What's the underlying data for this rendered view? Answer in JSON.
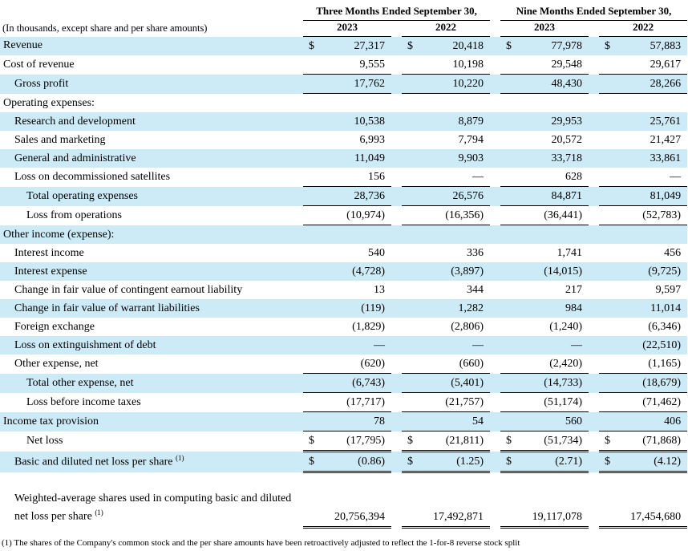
{
  "header": {
    "left_note": "(In thousands, except share and per share amounts)",
    "col_groups": [
      "Three Months Ended September 30,",
      "Nine Months Ended September 30,"
    ],
    "years": [
      "2023",
      "2022",
      "2023",
      "2022"
    ]
  },
  "colors": {
    "row_shade": "#cdeaf7",
    "border": "#000000"
  },
  "table": {
    "rows": [
      {
        "label": "Revenue",
        "indent": 0,
        "shade": true,
        "dollar": true,
        "values": [
          "27,317",
          "20,418",
          "77,978",
          "57,883"
        ],
        "border": "none"
      },
      {
        "label": "Cost of revenue",
        "indent": 0,
        "shade": false,
        "values": [
          "9,555",
          "10,198",
          "29,548",
          "29,617"
        ],
        "border": "single"
      },
      {
        "label": "Gross profit",
        "indent": 1,
        "shade": true,
        "values": [
          "17,762",
          "10,220",
          "48,430",
          "28,266"
        ],
        "border": "single"
      },
      {
        "label": "Operating expenses:",
        "indent": 0,
        "shade": false,
        "values": null
      },
      {
        "label": "Research and development",
        "indent": 1,
        "shade": true,
        "values": [
          "10,538",
          "8,879",
          "29,953",
          "25,761"
        ],
        "border": "none"
      },
      {
        "label": "Sales and marketing",
        "indent": 1,
        "shade": false,
        "values": [
          "6,993",
          "7,794",
          "20,572",
          "21,427"
        ],
        "border": "none"
      },
      {
        "label": "General and administrative",
        "indent": 1,
        "shade": true,
        "values": [
          "11,049",
          "9,903",
          "33,718",
          "33,861"
        ],
        "border": "none"
      },
      {
        "label": "Loss on decommissioned satellites",
        "indent": 1,
        "shade": false,
        "values": [
          "156",
          "—",
          "628",
          "—"
        ],
        "border": "single"
      },
      {
        "label": "Total operating expenses",
        "indent": 2,
        "shade": true,
        "values": [
          "28,736",
          "26,576",
          "84,871",
          "81,049"
        ],
        "border": "single"
      },
      {
        "label": "Loss from operations",
        "indent": 2,
        "shade": false,
        "values": [
          "(10,974)",
          "(16,356)",
          "(36,441)",
          "(52,783)"
        ],
        "border": "single"
      },
      {
        "label": "Other income (expense):",
        "indent": 0,
        "shade": true,
        "values": null
      },
      {
        "label": "Interest income",
        "indent": 1,
        "shade": false,
        "values": [
          "540",
          "336",
          "1,741",
          "456"
        ],
        "border": "none"
      },
      {
        "label": "Interest expense",
        "indent": 1,
        "shade": true,
        "values": [
          "(4,728)",
          "(3,897)",
          "(14,015)",
          "(9,725)"
        ],
        "border": "none"
      },
      {
        "label": "Change in fair value of contingent earnout liability",
        "indent": 1,
        "shade": false,
        "values": [
          "13",
          "344",
          "217",
          "9,597"
        ],
        "border": "none"
      },
      {
        "label": "Change in fair value of warrant liabilities",
        "indent": 1,
        "shade": true,
        "values": [
          "(119)",
          "1,282",
          "984",
          "11,014"
        ],
        "border": "none"
      },
      {
        "label": "Foreign exchange",
        "indent": 1,
        "shade": false,
        "values": [
          "(1,829)",
          "(2,806)",
          "(1,240)",
          "(6,346)"
        ],
        "border": "none"
      },
      {
        "label": "Loss on extinguishment of debt",
        "indent": 1,
        "shade": true,
        "values": [
          "—",
          "—",
          "—",
          "(22,510)"
        ],
        "border": "none"
      },
      {
        "label": "Other expense, net",
        "indent": 1,
        "shade": false,
        "values": [
          "(620)",
          "(660)",
          "(2,420)",
          "(1,165)"
        ],
        "border": "single"
      },
      {
        "label": "Total other expense, net",
        "indent": 2,
        "shade": true,
        "values": [
          "(6,743)",
          "(5,401)",
          "(14,733)",
          "(18,679)"
        ],
        "border": "single"
      },
      {
        "label": "Loss before income taxes",
        "indent": 2,
        "shade": false,
        "values": [
          "(17,717)",
          "(21,757)",
          "(51,174)",
          "(71,462)"
        ],
        "border": "single"
      },
      {
        "label": "Income tax provision",
        "indent": 0,
        "shade": true,
        "values": [
          "78",
          "54",
          "560",
          "406"
        ],
        "border": "single"
      },
      {
        "label": "Net loss",
        "indent": 2,
        "shade": false,
        "dollar": true,
        "values": [
          "(17,795)",
          "(21,811)",
          "(51,734)",
          "(71,868)"
        ],
        "border": "double"
      },
      {
        "label": "Basic and diluted net loss per share",
        "sup": "(1)",
        "indent": 1,
        "shade": true,
        "dollar": true,
        "values": [
          "(0.86)",
          "(1.25)",
          "(2.71)",
          "(4.12)"
        ],
        "border": "double"
      },
      {
        "spacer": true
      },
      {
        "label": "Weighted-average shares used in computing basic and diluted net loss per share",
        "sup": "(1)",
        "indent": 1,
        "shade": false,
        "values": [
          "20,756,394",
          "17,492,871",
          "19,117,078",
          "17,454,680"
        ],
        "border": "double",
        "tall": true
      }
    ]
  },
  "footnote": "(1) The shares of the Company's common stock and the per share amounts have been retroactively adjusted to reflect the 1-for-8 reverse stock split"
}
